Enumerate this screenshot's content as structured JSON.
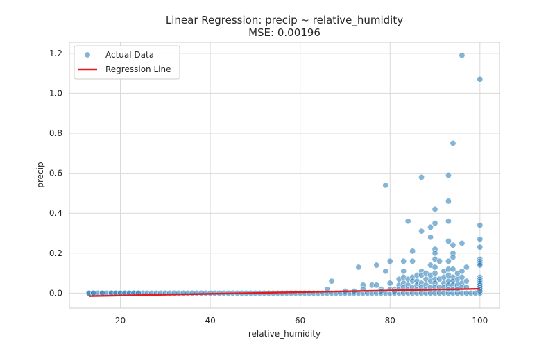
{
  "chart_data": {
    "type": "scatter",
    "title": "Linear Regression: precip ~ relative_humidity",
    "subtitle": "MSE: 0.00196",
    "xlabel": "relative_humidity",
    "ylabel": "precip",
    "xlim": [
      8.65,
      104.35
    ],
    "ylim": [
      -0.075,
      1.255
    ],
    "xticks": [
      20,
      40,
      60,
      80,
      100
    ],
    "xtick_labels": [
      "20",
      "40",
      "60",
      "80",
      "100"
    ],
    "yticks": [
      0.0,
      0.2,
      0.4,
      0.6,
      0.8,
      1.0,
      1.2
    ],
    "ytick_labels": [
      "0.0",
      "0.2",
      "0.4",
      "0.6",
      "0.8",
      "1.0",
      "1.2"
    ],
    "grid": true,
    "legend_position": "top-left",
    "legend": [
      "Actual Data",
      "Regression Line"
    ],
    "colors": {
      "scatter": "#1f77b4",
      "regression": "#e41a1c",
      "grid": "#d9d9d9",
      "axes_edge": "#cccccc"
    },
    "zero_band": {
      "x_from": 13,
      "x_to": 100,
      "step": 1,
      "y": 0.0
    },
    "series": [
      {
        "name": "Actual Data",
        "kind": "scatter",
        "points": [
          [
            13,
            0
          ],
          [
            14,
            0
          ],
          [
            16,
            0
          ],
          [
            18,
            0
          ],
          [
            19,
            0
          ],
          [
            20,
            0
          ],
          [
            21,
            0
          ],
          [
            22,
            0
          ],
          [
            23,
            0
          ],
          [
            24,
            0
          ],
          [
            66,
            0.02
          ],
          [
            67,
            0.06
          ],
          [
            70,
            0.01
          ],
          [
            72,
            0.01
          ],
          [
            73,
            0.13
          ],
          [
            74,
            0.04
          ],
          [
            74,
            0.02
          ],
          [
            76,
            0.04
          ],
          [
            77,
            0.14
          ],
          [
            77,
            0.04
          ],
          [
            78,
            0.02
          ],
          [
            78,
            0.01
          ],
          [
            79,
            0.54
          ],
          [
            79,
            0.11
          ],
          [
            80,
            0.16
          ],
          [
            80,
            0.05
          ],
          [
            80,
            0.02
          ],
          [
            81,
            0.02
          ],
          [
            81,
            0.01
          ],
          [
            82,
            0.07
          ],
          [
            82,
            0.04
          ],
          [
            82,
            0.02
          ],
          [
            83,
            0.16
          ],
          [
            83,
            0.11
          ],
          [
            83,
            0.08
          ],
          [
            83,
            0.05
          ],
          [
            83,
            0.03
          ],
          [
            84,
            0.36
          ],
          [
            84,
            0.07
          ],
          [
            84,
            0.04
          ],
          [
            84,
            0.02
          ],
          [
            85,
            0.21
          ],
          [
            85,
            0.16
          ],
          [
            85,
            0.08
          ],
          [
            85,
            0.06
          ],
          [
            85,
            0.03
          ],
          [
            86,
            0.09
          ],
          [
            86,
            0.06
          ],
          [
            86,
            0.04
          ],
          [
            86,
            0.02
          ],
          [
            87,
            0.58
          ],
          [
            87,
            0.31
          ],
          [
            87,
            0.11
          ],
          [
            87,
            0.09
          ],
          [
            87,
            0.05
          ],
          [
            87,
            0.03
          ],
          [
            88,
            0.1
          ],
          [
            88,
            0.07
          ],
          [
            88,
            0.04
          ],
          [
            88,
            0.02
          ],
          [
            89,
            0.33
          ],
          [
            89,
            0.28
          ],
          [
            89,
            0.14
          ],
          [
            89,
            0.09
          ],
          [
            89,
            0.06
          ],
          [
            89,
            0.03
          ],
          [
            90,
            0.42
          ],
          [
            90,
            0.35
          ],
          [
            90,
            0.22
          ],
          [
            90,
            0.2
          ],
          [
            90,
            0.17
          ],
          [
            90,
            0.13
          ],
          [
            90,
            0.1
          ],
          [
            90,
            0.07
          ],
          [
            90,
            0.05
          ],
          [
            90,
            0.03
          ],
          [
            91,
            0.16
          ],
          [
            91,
            0.07
          ],
          [
            91,
            0.03
          ],
          [
            92,
            0.11
          ],
          [
            92,
            0.08
          ],
          [
            92,
            0.05
          ],
          [
            92,
            0.03
          ],
          [
            93,
            0.59
          ],
          [
            93,
            0.46
          ],
          [
            93,
            0.36
          ],
          [
            93,
            0.26
          ],
          [
            93,
            0.16
          ],
          [
            93,
            0.12
          ],
          [
            93,
            0.09
          ],
          [
            93,
            0.06
          ],
          [
            93,
            0.04
          ],
          [
            93,
            0.02
          ],
          [
            94,
            0.75
          ],
          [
            94,
            0.24
          ],
          [
            94,
            0.2
          ],
          [
            94,
            0.18
          ],
          [
            94,
            0.12
          ],
          [
            94,
            0.08
          ],
          [
            94,
            0.06
          ],
          [
            94,
            0.04
          ],
          [
            94,
            0.02
          ],
          [
            95,
            0.1
          ],
          [
            95,
            0.07
          ],
          [
            95,
            0.04
          ],
          [
            95,
            0.02
          ],
          [
            96,
            1.19
          ],
          [
            96,
            0.25
          ],
          [
            96,
            0.11
          ],
          [
            96,
            0.08
          ],
          [
            96,
            0.05
          ],
          [
            96,
            0.03
          ],
          [
            97,
            0.13
          ],
          [
            97,
            0.06
          ],
          [
            97,
            0.03
          ],
          [
            100,
            1.07
          ],
          [
            100,
            0.34
          ],
          [
            100,
            0.27
          ],
          [
            100,
            0.23
          ],
          [
            100,
            0.17
          ],
          [
            100,
            0.16
          ],
          [
            100,
            0.15
          ],
          [
            100,
            0.14
          ],
          [
            100,
            0.08
          ],
          [
            100,
            0.07
          ],
          [
            100,
            0.06
          ],
          [
            100,
            0.05
          ],
          [
            100,
            0.04
          ],
          [
            100,
            0.03
          ],
          [
            100,
            0.02
          ],
          [
            100,
            0.01
          ]
        ]
      },
      {
        "name": "Regression Line",
        "kind": "line",
        "points": [
          [
            13,
            -0.015
          ],
          [
            100,
            0.022
          ]
        ]
      }
    ]
  }
}
